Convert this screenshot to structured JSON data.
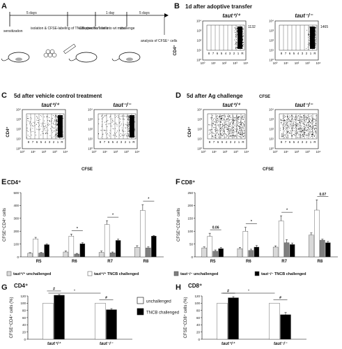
{
  "panels": {
    "A": {
      "letter": "A",
      "interval1": "5 days",
      "interval2": "1 day",
      "interval3": "5 days",
      "step1": "sensitization",
      "step2": "isolation & CFSE-labeling of TNCB-specific T cells",
      "step3": "adoptive transfer into wt mice",
      "step4": "challenge",
      "step5": "analysis of CFSE⁺ cells"
    },
    "B": {
      "letter": "B",
      "title": "1d after adoptive transfer",
      "left_label": "taut⁺/⁺",
      "right_label": "taut⁻/⁻",
      "left_count": "1132",
      "right_count": "1465",
      "ylabel": "CD4⁺",
      "xlabel": "CFSE"
    },
    "C": {
      "letter": "C",
      "title": "5d after vehicle control treatment",
      "left_label": "taut⁺/⁺",
      "right_label": "taut⁻/⁻",
      "ylabel": "CD4⁺",
      "xlabel": "CFSE"
    },
    "D": {
      "letter": "D",
      "title": "5d after Ag challenge",
      "left_label": "taut⁺/⁺",
      "right_label": "taut⁻/⁻",
      "ylabel": "CD4⁺",
      "xlabel": "CFSE"
    },
    "E": {
      "letter": "E"
    },
    "F": {
      "letter": "F"
    },
    "G": {
      "letter": "G"
    },
    "H": {
      "letter": "H"
    }
  },
  "flow_gate_labels": [
    "8",
    "7",
    "6",
    "5",
    "4",
    "3",
    "2",
    "1",
    "R"
  ],
  "flow_axis_ticks": [
    "10⁰",
    "10¹",
    "10²",
    "10³",
    "10⁴"
  ],
  "legend_EF": [
    {
      "label": "taut⁺/⁺ unchallenged",
      "color": "#d9d9d9"
    },
    {
      "label": "taut⁺/⁺ TNCB challenged",
      "color": "#ffffff"
    },
    {
      "label": "taut⁻/⁻ unchallenged",
      "color": "#7f7f7f"
    },
    {
      "label": "taut⁻/⁻ TNCB challenged",
      "color": "#000000"
    }
  ],
  "legend_GH": [
    {
      "label": "unchallenged",
      "color": "#ffffff"
    },
    {
      "label": "TNCB challenged",
      "color": "#000000"
    }
  ],
  "chart_data": [
    {
      "id": "E",
      "type": "bar",
      "title": "CD4⁺",
      "ylabel": "CFSE⁺CD4⁺ cells",
      "categories": [
        "R5",
        "R6",
        "R7",
        "R8"
      ],
      "ylim": [
        0,
        500
      ],
      "yticks": [
        0,
        100,
        200,
        300,
        400,
        500
      ],
      "series": [
        {
          "name": "taut⁺/⁺ unchallenged",
          "values": [
            28,
            38,
            35,
            75
          ],
          "color": "#d9d9d9"
        },
        {
          "name": "taut⁺/⁺ TNCB challenged",
          "values": [
            140,
            162,
            252,
            362
          ],
          "color": "#ffffff"
        },
        {
          "name": "taut⁻/⁻ unchallenged",
          "values": [
            30,
            22,
            32,
            70
          ],
          "color": "#7f7f7f"
        },
        {
          "name": "taut⁻/⁻ TNCB challenged",
          "values": [
            95,
            102,
            128,
            162
          ],
          "color": "#000000"
        }
      ],
      "errors": [
        [
          5,
          8,
          10,
          12
        ],
        [
          12,
          15,
          30,
          45
        ],
        [
          4,
          5,
          6,
          8
        ],
        [
          6,
          8,
          10,
          5
        ]
      ],
      "annotations": [
        {
          "category": "R6",
          "text": "*"
        },
        {
          "category": "R7",
          "text": "*"
        },
        {
          "category": "R8",
          "text": "*"
        }
      ]
    },
    {
      "id": "F",
      "type": "bar",
      "title": "CD8⁺",
      "ylabel": "CFSE⁺CD8⁺ cells",
      "categories": [
        "R5",
        "R6",
        "R7",
        "R8"
      ],
      "ylim": [
        0,
        250
      ],
      "yticks": [
        0,
        50,
        100,
        150,
        200,
        250
      ],
      "series": [
        {
          "name": "taut⁺/⁺ unchallenged",
          "values": [
            35,
            32,
            38,
            85
          ],
          "color": "#d9d9d9"
        },
        {
          "name": "taut⁺/⁺ TNCB challenged",
          "values": [
            80,
            100,
            140,
            182
          ],
          "color": "#ffffff"
        },
        {
          "name": "taut⁻/⁻ unchallenged",
          "values": [
            22,
            25,
            55,
            65
          ],
          "color": "#7f7f7f"
        },
        {
          "name": "taut⁻/⁻ TNCB challenged",
          "values": [
            32,
            38,
            48,
            55
          ],
          "color": "#000000"
        }
      ],
      "errors": [
        [
          4,
          5,
          5,
          8
        ],
        [
          12,
          15,
          20,
          40
        ],
        [
          5,
          5,
          12,
          4
        ],
        [
          5,
          6,
          6,
          5
        ]
      ],
      "annotations": [
        {
          "category": "R5",
          "text": "0.06"
        },
        {
          "category": "R6",
          "text": "*"
        },
        {
          "category": "R7",
          "text": "*"
        },
        {
          "category": "R8",
          "text": "0.07"
        }
      ]
    },
    {
      "id": "G",
      "type": "bar",
      "title": "CD4⁺",
      "ylabel": "CFSE⁺CD4⁺ cells (%)",
      "categories": [
        "taut⁺/⁺",
        "taut⁻/⁻"
      ],
      "ylim": [
        0,
        120
      ],
      "yticks": [
        0,
        20,
        40,
        60,
        80,
        100,
        120
      ],
      "series": [
        {
          "name": "unchallenged",
          "values": [
            100,
            100
          ],
          "color": "#ffffff"
        },
        {
          "name": "TNCB challenged",
          "values": [
            122,
            82
          ],
          "color": "#000000"
        }
      ],
      "errors": [
        [
          0,
          0
        ],
        [
          2,
          3
        ]
      ],
      "annotations": [
        {
          "category": "taut⁺/⁺",
          "text": "#"
        },
        {
          "category": "taut⁻/⁻",
          "text": "#"
        },
        {
          "between": true,
          "text": "*"
        }
      ]
    },
    {
      "id": "H",
      "type": "bar",
      "title": "CD8⁺",
      "ylabel": "CFSE⁺CD8⁺ cells (%)",
      "categories": [
        "taut⁺/⁺",
        "taut⁻/⁻"
      ],
      "ylim": [
        0,
        120
      ],
      "yticks": [
        0,
        20,
        40,
        60,
        80,
        100,
        120
      ],
      "series": [
        {
          "name": "unchallenged",
          "values": [
            100,
            100
          ],
          "color": "#ffffff"
        },
        {
          "name": "TNCB challenged",
          "values": [
            115,
            68
          ],
          "color": "#000000"
        }
      ],
      "errors": [
        [
          0,
          0
        ],
        [
          3,
          6
        ]
      ],
      "annotations": [
        {
          "category": "taut⁺/⁺",
          "text": "#"
        },
        {
          "category": "taut⁻/⁻",
          "text": "#"
        },
        {
          "between": true,
          "text": "*"
        }
      ]
    }
  ]
}
